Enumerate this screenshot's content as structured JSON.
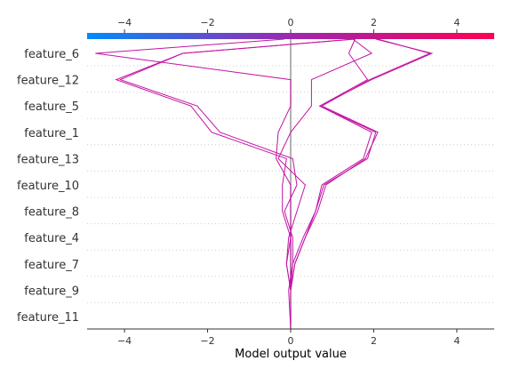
{
  "chart_data": {
    "type": "line",
    "title": "",
    "xlabel": "Model output value",
    "ylabel": "",
    "xlim": [
      -4.9,
      4.9
    ],
    "xticks": [
      -4,
      -2,
      0,
      2,
      4
    ],
    "tick_labels": [
      "−4",
      "−2",
      "0",
      "2",
      "4"
    ],
    "colorbar": {
      "range": [
        -4.9,
        4.9
      ],
      "color_low": "#008bfb",
      "color_mid": "#9c27b0",
      "color_high": "#ff0052"
    },
    "features": [
      "feature_6",
      "feature_12",
      "feature_5",
      "feature_1",
      "feature_13",
      "feature_10",
      "feature_8",
      "feature_4",
      "feature_7",
      "feature_9",
      "feature_11"
    ],
    "base_value": 0,
    "line_color": "#c214a4",
    "grid": "dotted",
    "series": [
      {
        "values": [
          2.1,
          3.35,
          1.9,
          0.75,
          2.1,
          1.8,
          0.85,
          0.65,
          0.35,
          0.1,
          0.0,
          0.0
        ]
      },
      {
        "values": [
          2.05,
          3.4,
          1.95,
          0.7,
          2.05,
          1.85,
          0.8,
          0.6,
          0.3,
          0.05,
          0.0,
          0.0
        ]
      },
      {
        "values": [
          1.5,
          1.95,
          0.5,
          0.5,
          0.0,
          -0.3,
          0.35,
          0.15,
          -0.05,
          -0.1,
          0.0,
          0.0
        ]
      },
      {
        "values": [
          1.5,
          -2.6,
          -4.1,
          -2.25,
          -1.7,
          0.05,
          0.15,
          -0.15,
          0.05,
          0.05,
          -0.05,
          0.0
        ]
      },
      {
        "values": [
          1.55,
          -2.6,
          -4.2,
          -2.4,
          -1.9,
          -0.1,
          -0.2,
          -0.2,
          0.0,
          -0.1,
          0.0,
          0.0
        ]
      },
      {
        "values": [
          -0.15,
          -4.7,
          0.0,
          0.0,
          -0.3,
          -0.35,
          0.0,
          0.0,
          0.0,
          0.0,
          0.0,
          0.0
        ]
      },
      {
        "values": [
          1.55,
          1.4,
          1.85,
          0.7,
          1.95,
          1.75,
          0.75,
          0.6,
          0.35,
          0.1,
          0.0,
          0.0
        ]
      }
    ]
  }
}
